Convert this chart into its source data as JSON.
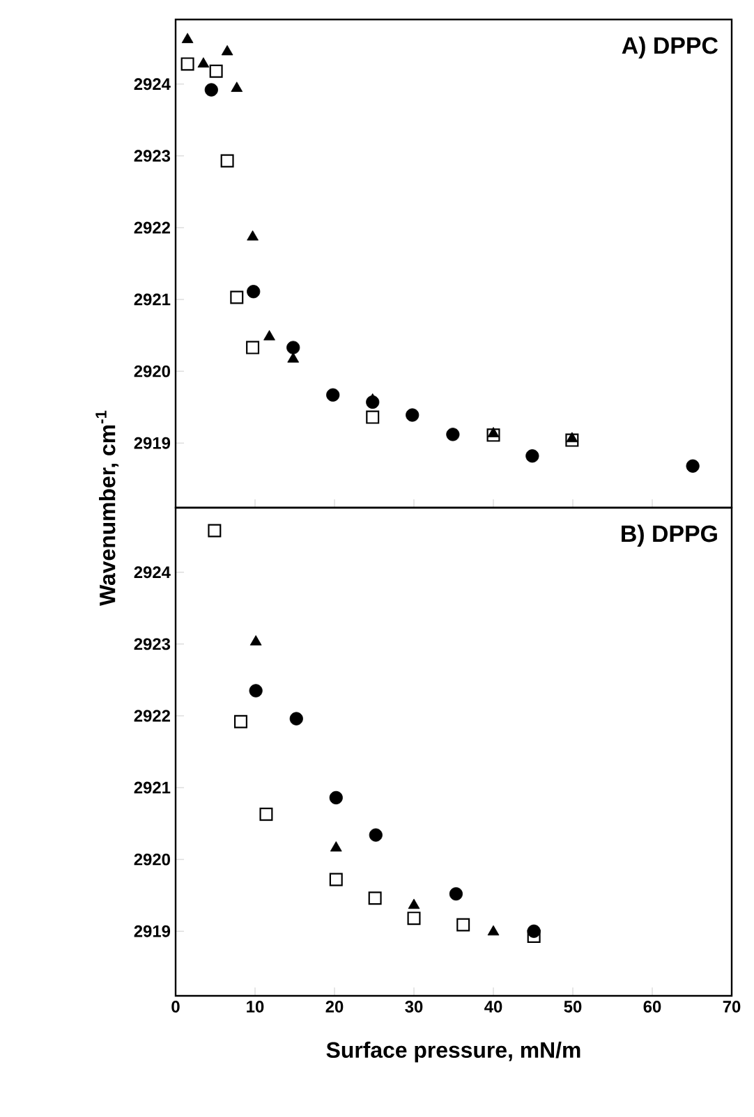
{
  "chart_data": [
    {
      "type": "scatter",
      "title": "A) DPPC",
      "xlim": [
        0,
        70
      ],
      "xticks": [
        0,
        10,
        20,
        30,
        40,
        50,
        60,
        70
      ],
      "ylim": [
        2918.1,
        2924.9
      ],
      "yticks": [
        2919,
        2920,
        2921,
        2922,
        2923,
        2924
      ],
      "tick_labels": "y",
      "grid": false,
      "series": [
        {
          "color": "#000000",
          "marker": "circle",
          "x": [
            4.5,
            9.8,
            14.8,
            19.8,
            24.8,
            29.8,
            34.9,
            44.9,
            65.1
          ],
          "values": [
            2923.92,
            2921.11,
            2920.33,
            2919.67,
            2919.57,
            2919.39,
            2919.12,
            2918.82,
            2918.68
          ]
        },
        {
          "color": "#000000",
          "marker": "triangle",
          "x": [
            1.5,
            3.5,
            6.5,
            7.7,
            9.7,
            11.8,
            14.8,
            24.8,
            40,
            49.9
          ],
          "values": [
            2924.62,
            2924.28,
            2924.45,
            2923.94,
            2921.87,
            2920.48,
            2920.17,
            2919.6,
            2919.13,
            2919.06
          ]
        },
        {
          "color": "#000000",
          "marker": "square",
          "x": [
            1.5,
            5.1,
            6.5,
            7.7,
            9.7,
            24.8,
            40,
            49.9
          ],
          "values": [
            2924.28,
            2924.18,
            2922.93,
            2921.03,
            2920.33,
            2919.36,
            2919.11,
            2919.04
          ]
        }
      ]
    },
    {
      "type": "scatter",
      "title": "B) DPPG",
      "xlabel": "Surface pressure, mN/m",
      "ylabel": "Wavenumber, cm$^{-1}$",
      "xlim": [
        0,
        70
      ],
      "xticks": [
        0,
        10,
        20,
        30,
        40,
        50,
        60,
        70
      ],
      "ylim": [
        2918.1,
        2924.9
      ],
      "yticks": [
        2919,
        2920,
        2921,
        2922,
        2923,
        2924
      ],
      "grid": false,
      "series": [
        {
          "color": "#000000",
          "marker": "circle",
          "x": [
            10.1,
            15.2,
            20.2,
            25.2,
            35.3,
            45.1
          ],
          "values": [
            2922.35,
            2921.96,
            2920.86,
            2920.34,
            2919.52,
            2919.0
          ]
        },
        {
          "color": "#000000",
          "marker": "triangle",
          "x": [
            10.1,
            20.2,
            30,
            40
          ],
          "values": [
            2923.03,
            2920.16,
            2919.36,
            2918.99
          ]
        },
        {
          "color": "#000000",
          "marker": "square",
          "x": [
            4.9,
            8.2,
            11.4,
            20.2,
            25.1,
            30,
            36.2,
            45.1
          ],
          "values": [
            2924.58,
            2921.92,
            2920.63,
            2919.72,
            2919.46,
            2919.18,
            2919.09,
            2918.93
          ]
        }
      ]
    }
  ]
}
